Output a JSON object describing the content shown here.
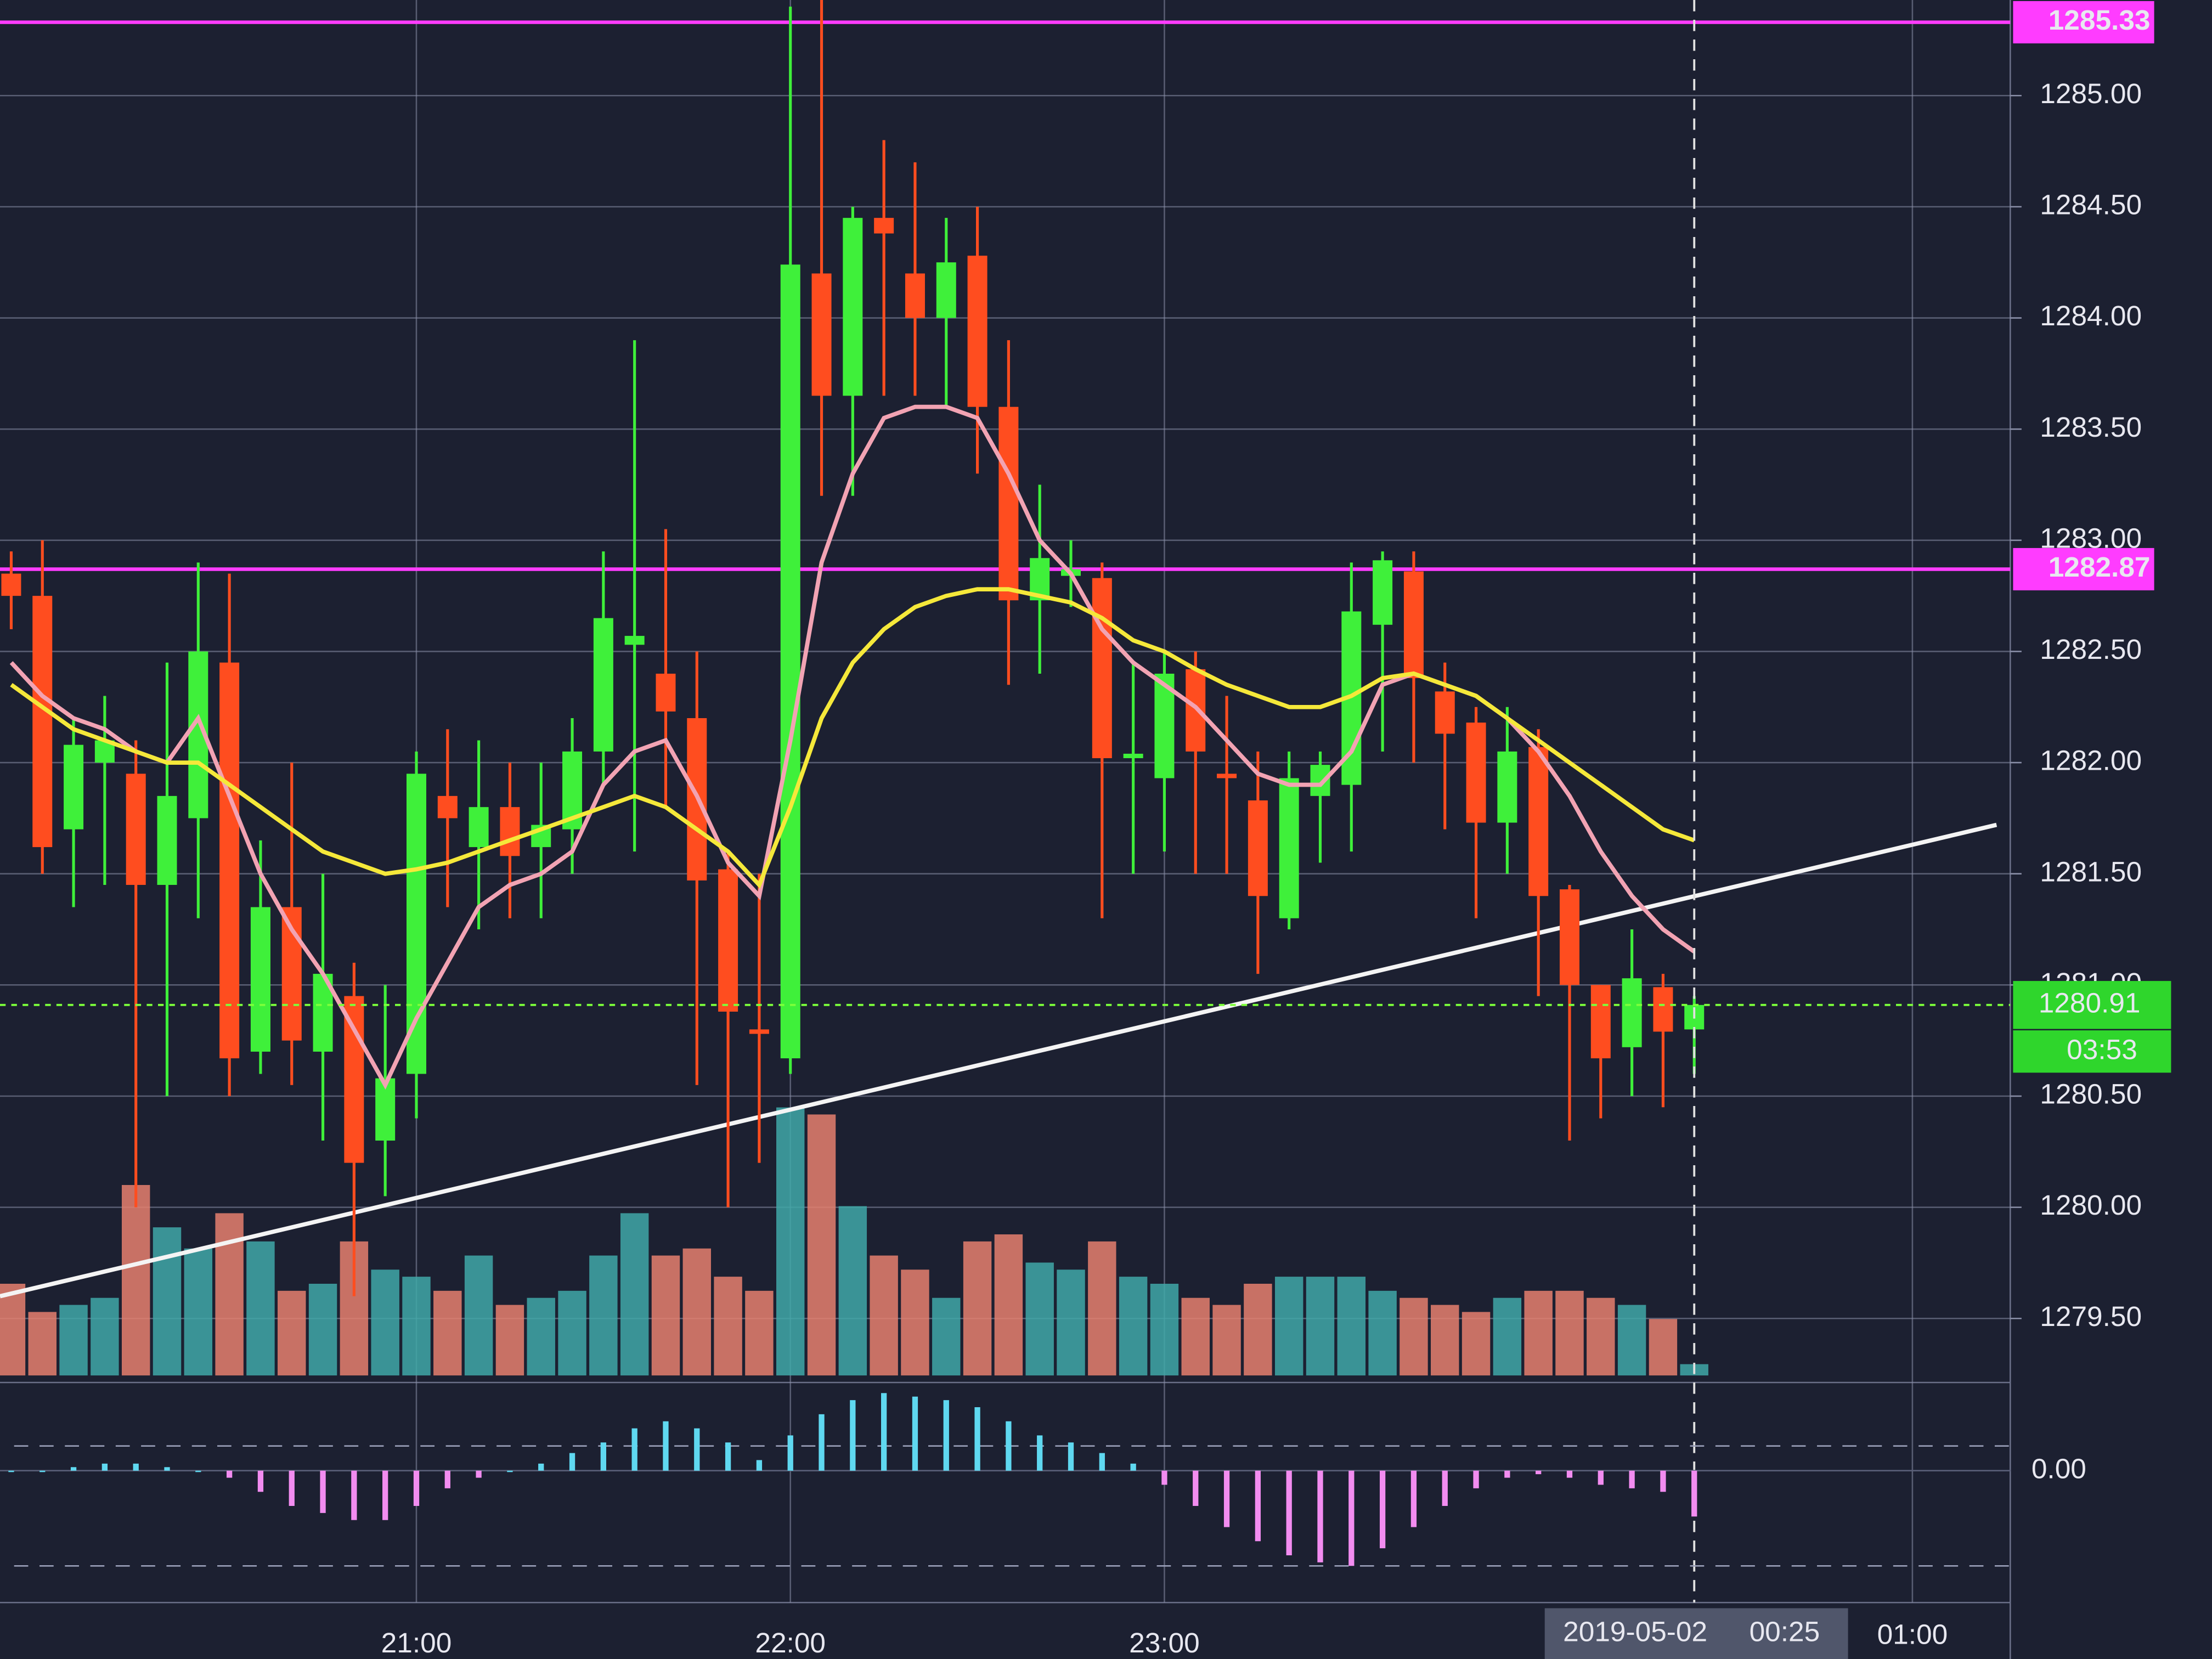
{
  "chart_data": {
    "type": "candlestick",
    "categories": [
      null,
      null,
      null,
      null,
      null,
      null,
      null,
      null,
      null,
      null,
      null,
      null,
      null,
      "21:00",
      null,
      null,
      null,
      null,
      null,
      null,
      null,
      null,
      null,
      null,
      null,
      "22:00",
      null,
      null,
      null,
      null,
      null,
      null,
      null,
      null,
      null,
      null,
      null,
      "23:00",
      null,
      null,
      null,
      null,
      null,
      null,
      null,
      null,
      null,
      null,
      null,
      null,
      null,
      null,
      null,
      null,
      "00:25"
    ],
    "open": [
      1282.85,
      1282.75,
      1281.7,
      1282.0,
      1281.95,
      1281.45,
      1281.75,
      1282.45,
      1280.7,
      1281.35,
      1280.7,
      1280.95,
      1280.3,
      1280.6,
      1281.85,
      1281.62,
      1281.8,
      1281.62,
      1281.7,
      1282.05,
      1282.53,
      1282.4,
      1282.2,
      1281.52,
      1280.8,
      1280.67,
      1284.2,
      1283.65,
      1284.45,
      1284.2,
      1284.0,
      1284.28,
      1283.6,
      1282.73,
      1282.84,
      1282.83,
      1282.02,
      1281.93,
      1282.42,
      1281.95,
      1281.83,
      1281.3,
      1281.85,
      1281.9,
      1282.62,
      1282.86,
      1282.32,
      1282.18,
      1281.73,
      1282.07,
      1281.43,
      1281.0,
      1280.72,
      1280.99,
      1280.8
    ],
    "high": [
      1282.95,
      1283.0,
      1282.2,
      1282.3,
      1282.1,
      1282.45,
      1282.9,
      1282.85,
      1281.65,
      1282.0,
      1281.5,
      1281.1,
      1281.0,
      1282.05,
      1282.15,
      1282.1,
      1282.0,
      1282.0,
      1282.2,
      1282.95,
      1283.9,
      1283.05,
      1282.5,
      1281.6,
      1281.5,
      1285.4,
      1285.45,
      1284.5,
      1284.8,
      1284.7,
      1284.45,
      1284.5,
      1283.9,
      1283.25,
      1283.0,
      1282.9,
      1282.45,
      1282.5,
      1282.5,
      1282.3,
      1282.05,
      1282.05,
      1282.05,
      1282.9,
      1282.95,
      1282.95,
      1282.45,
      1282.25,
      1282.25,
      1282.15,
      1281.45,
      1281.0,
      1281.25,
      1281.05,
      1280.95
    ],
    "low": [
      1282.6,
      1281.5,
      1281.35,
      1281.45,
      1280.0,
      1280.5,
      1281.3,
      1280.5,
      1280.6,
      1280.55,
      1280.3,
      1279.6,
      1280.05,
      1280.4,
      1281.35,
      1281.25,
      1281.3,
      1281.3,
      1281.5,
      1281.9,
      1281.6,
      1281.8,
      1280.55,
      1280.0,
      1280.2,
      1280.6,
      1283.2,
      1283.2,
      1283.65,
      1283.65,
      1283.6,
      1283.3,
      1282.35,
      1282.4,
      1282.7,
      1281.3,
      1281.5,
      1281.6,
      1281.5,
      1281.5,
      1281.05,
      1281.25,
      1281.55,
      1281.6,
      1282.05,
      1282.0,
      1281.7,
      1281.3,
      1281.5,
      1280.95,
      1280.3,
      1280.4,
      1280.5,
      1280.45,
      1280.6
    ],
    "close": [
      1282.75,
      1281.62,
      1282.08,
      1282.1,
      1281.45,
      1281.85,
      1282.5,
      1280.67,
      1281.35,
      1280.75,
      1281.05,
      1280.2,
      1280.58,
      1281.95,
      1281.75,
      1281.8,
      1281.58,
      1281.72,
      1282.05,
      1282.65,
      1282.57,
      1282.23,
      1281.47,
      1280.88,
      1280.78,
      1284.24,
      1283.65,
      1284.45,
      1284.38,
      1284.0,
      1284.25,
      1283.6,
      1282.73,
      1282.92,
      1282.87,
      1282.02,
      1282.04,
      1282.4,
      1282.05,
      1281.93,
      1281.4,
      1281.93,
      1281.99,
      1282.68,
      1282.91,
      1282.38,
      1282.13,
      1281.73,
      1282.05,
      1281.4,
      1281.0,
      1280.67,
      1281.03,
      1280.79,
      1280.91
    ],
    "up_color": "#3ff03a",
    "down_color": "#ff4d1f",
    "volume": {
      "values": [
        65,
        45,
        50,
        55,
        135,
        105,
        90,
        115,
        95,
        60,
        65,
        95,
        75,
        70,
        60,
        85,
        50,
        55,
        60,
        85,
        115,
        85,
        90,
        70,
        60,
        190,
        185,
        120,
        85,
        75,
        55,
        95,
        100,
        80,
        75,
        95,
        70,
        65,
        55,
        50,
        65,
        70,
        70,
        70,
        60,
        55,
        50,
        45,
        55,
        60,
        60,
        55,
        50,
        40,
        8
      ],
      "up_color": "#3fa8a8",
      "down_color": "#e6806e"
    },
    "series": [
      {
        "color": "#f2a3b3",
        "values": [
          1282.45,
          1282.3,
          1282.2,
          1282.15,
          1282.05,
          1282.0,
          1282.2,
          1281.85,
          1281.5,
          1281.25,
          1281.05,
          1280.8,
          1280.55,
          1280.85,
          1281.1,
          1281.35,
          1281.45,
          1281.5,
          1281.6,
          1281.9,
          1282.05,
          1282.1,
          1281.85,
          1281.55,
          1281.4,
          1282.1,
          1282.9,
          1283.3,
          1283.55,
          1283.6,
          1283.6,
          1283.55,
          1283.3,
          1283.0,
          1282.85,
          1282.6,
          1282.45,
          1282.35,
          1282.25,
          1282.1,
          1281.95,
          1281.9,
          1281.9,
          1282.05,
          1282.35,
          1282.4,
          1282.35,
          1282.3,
          1282.2,
          1282.05,
          1281.85,
          1281.6,
          1281.4,
          1281.25,
          1281.15
        ]
      },
      {
        "color": "#f5e83a",
        "values": [
          1282.35,
          1282.25,
          1282.15,
          1282.1,
          1282.05,
          1282.0,
          1282.0,
          1281.9,
          1281.8,
          1281.7,
          1281.6,
          1281.55,
          1281.5,
          1281.52,
          1281.55,
          1281.6,
          1281.65,
          1281.7,
          1281.75,
          1281.8,
          1281.85,
          1281.8,
          1281.7,
          1281.6,
          1281.45,
          1281.8,
          1282.2,
          1282.45,
          1282.6,
          1282.7,
          1282.75,
          1282.78,
          1282.78,
          1282.75,
          1282.72,
          1282.65,
          1282.55,
          1282.5,
          1282.42,
          1282.35,
          1282.3,
          1282.25,
          1282.25,
          1282.3,
          1282.38,
          1282.4,
          1282.35,
          1282.3,
          1282.2,
          1282.1,
          1282.0,
          1281.9,
          1281.8,
          1281.7,
          1281.65
        ]
      }
    ],
    "levels": [
      {
        "value": 1285.33,
        "color": "#ff3cff"
      },
      {
        "value": 1282.87,
        "color": "#ff3cff"
      }
    ],
    "trendline": {
      "x": [
        -0.36,
        63.7
      ],
      "y": [
        1279.6,
        1281.72
      ],
      "color": "#f4f4f4"
    },
    "countdown": "03:53",
    "crosshair_date": "2019-05-02",
    "extra_xticks": [
      {
        "value": 61,
        "label": "01:00"
      }
    ],
    "xlim": [
      -0.36,
      64.14
    ],
    "ylim": [
      1279.25,
      1285.43
    ],
    "yticks": [
      {
        "value": 1279.5,
        "label": "1279.50"
      },
      {
        "value": 1280,
        "label": "1280.00"
      },
      {
        "value": 1280.5,
        "label": "1280.50"
      },
      {
        "value": 1281,
        "label": "1281.00"
      },
      {
        "value": 1281.5,
        "label": "1281.50"
      },
      {
        "value": 1282,
        "label": "1282.00"
      },
      {
        "value": 1282.5,
        "label": "1282.50"
      },
      {
        "value": 1283,
        "label": "1283.00"
      },
      {
        "value": 1283.5,
        "label": "1283.50"
      },
      {
        "value": 1284,
        "label": "1284.00"
      },
      {
        "value": 1284.5,
        "label": "1284.50"
      },
      {
        "value": 1285,
        "label": "1285.00"
      }
    ],
    "grid": true,
    "macd": {
      "ylim": [
        -0.35,
        0.23
      ],
      "yticks": [
        {
          "value": 0,
          "label": "0.00"
        }
      ],
      "levels": [
        0.07,
        -0.27
      ],
      "up_color": "#5fd8f0",
      "down_color": "#f28cf0",
      "values": [
        0,
        0,
        0.01,
        0.02,
        0.02,
        0.01,
        0,
        -0.02,
        -0.06,
        -0.1,
        -0.12,
        -0.14,
        -0.14,
        -0.1,
        -0.05,
        -0.02,
        0,
        0.02,
        0.05,
        0.08,
        0.12,
        0.14,
        0.12,
        0.08,
        0.03,
        0.1,
        0.16,
        0.2,
        0.22,
        0.21,
        0.2,
        0.18,
        0.14,
        0.1,
        0.08,
        0.05,
        0.02,
        -0.04,
        -0.1,
        -0.16,
        -0.2,
        -0.24,
        -0.26,
        -0.27,
        -0.22,
        -0.16,
        -0.1,
        -0.05,
        -0.02,
        -0.01,
        -0.02,
        -0.04,
        -0.05,
        -0.06,
        -0.13
      ]
    }
  }
}
